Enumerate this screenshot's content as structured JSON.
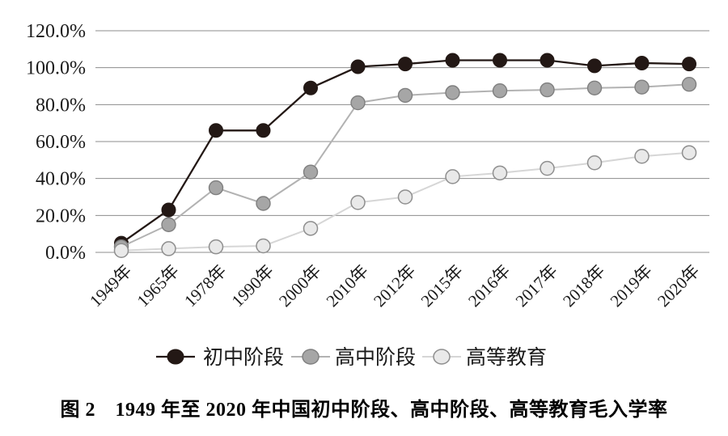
{
  "figure_caption": "图 2　1949 年至 2020 年中国初中阶段、高中阶段、高等教育毛入学率",
  "chart_data": {
    "type": "line",
    "title": "",
    "xlabel": "",
    "ylabel": "",
    "categories": [
      "1949年",
      "1965年",
      "1978年",
      "1990年",
      "2000年",
      "2010年",
      "2012年",
      "2015年",
      "2016年",
      "2017年",
      "2018年",
      "2019年",
      "2020年"
    ],
    "series": [
      {
        "name": "初中阶段",
        "values": [
          5.0,
          23.0,
          66.0,
          66.0,
          89.0,
          100.5,
          102.0,
          104.0,
          104.0,
          104.0,
          101.0,
          102.5,
          102.0
        ],
        "line_color": "#231815",
        "marker_fill": "#231815",
        "marker_stroke": "#231815"
      },
      {
        "name": "高中阶段",
        "values": [
          3.0,
          15.0,
          35.0,
          26.5,
          43.5,
          81.0,
          85.0,
          86.5,
          87.5,
          88.0,
          89.0,
          89.5,
          91.0
        ],
        "line_color": "#b2b2b2",
        "marker_fill": "#a6a6a6",
        "marker_stroke": "#7f7f7f"
      },
      {
        "name": "高等教育",
        "values": [
          1.0,
          2.0,
          3.0,
          3.5,
          13.0,
          27.0,
          30.0,
          41.0,
          43.0,
          45.5,
          48.5,
          52.0,
          54.0
        ],
        "line_color": "#d6d6d6",
        "marker_fill": "#e9e9e9",
        "marker_stroke": "#8f8f8f"
      }
    ],
    "ylim": [
      0,
      120
    ],
    "ytick_labels": [
      "0.0%",
      "20.0%",
      "40.0%",
      "60.0%",
      "80.0%",
      "100.0%",
      "120.0%"
    ],
    "grid": "horizontal",
    "gridline_color": "#8c8c8c",
    "axis_text_color": "#1a1a1a",
    "legend_position": "bottom"
  }
}
